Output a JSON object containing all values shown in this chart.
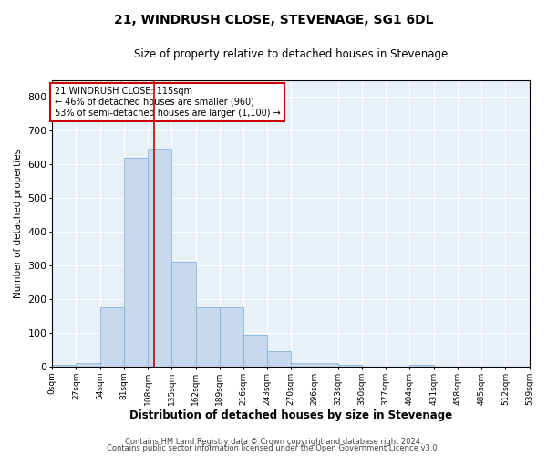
{
  "title": "21, WINDRUSH CLOSE, STEVENAGE, SG1 6DL",
  "subtitle": "Size of property relative to detached houses in Stevenage",
  "xlabel": "Distribution of detached houses by size in Stevenage",
  "ylabel": "Number of detached properties",
  "bar_color": "#c8d9ee",
  "bar_edge_color": "#7aadd4",
  "background_color": "#e8f0f8",
  "grid_color": "#ffffff",
  "annotation_box_color": "#cc0000",
  "annotation_text": "21 WINDRUSH CLOSE: 115sqm\n← 46% of detached houses are smaller (960)\n53% of semi-detached houses are larger (1,100) →",
  "vline_x": 115,
  "vline_color": "#cc0000",
  "footer_line1": "Contains HM Land Registry data © Crown copyright and database right 2024.",
  "footer_line2": "Contains public sector information licensed under the Open Government Licence v3.0.",
  "bins": [
    0,
    27,
    54,
    81,
    108,
    135,
    162,
    189,
    216,
    243,
    270,
    296,
    323,
    350,
    377,
    404,
    431,
    458,
    485,
    512,
    539
  ],
  "bin_labels": [
    "0sqm",
    "27sqm",
    "54sqm",
    "81sqm",
    "108sqm",
    "135sqm",
    "162sqm",
    "189sqm",
    "216sqm",
    "243sqm",
    "270sqm",
    "296sqm",
    "323sqm",
    "350sqm",
    "377sqm",
    "404sqm",
    "431sqm",
    "458sqm",
    "485sqm",
    "512sqm",
    "539sqm"
  ],
  "counts": [
    5,
    10,
    175,
    620,
    645,
    310,
    175,
    175,
    95,
    45,
    10,
    10,
    5,
    0,
    0,
    5,
    0,
    0,
    0,
    0
  ],
  "ylim": [
    0,
    850
  ],
  "yticks": [
    0,
    100,
    200,
    300,
    400,
    500,
    600,
    700,
    800
  ]
}
